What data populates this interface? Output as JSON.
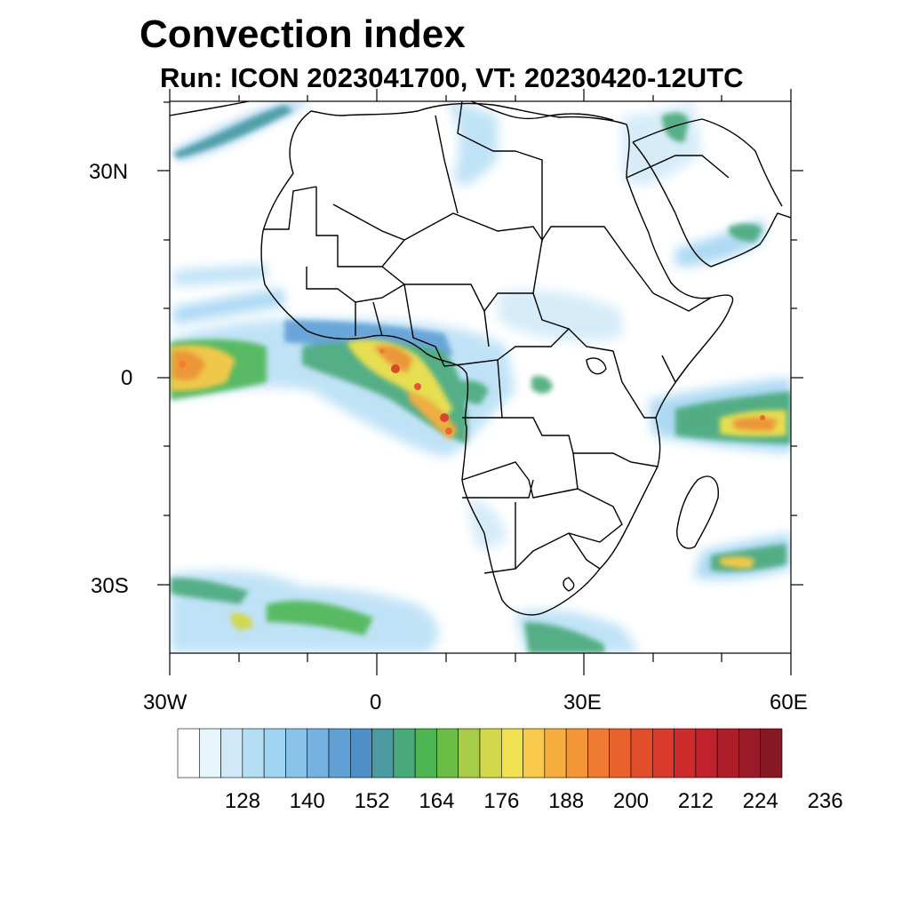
{
  "title": "Convection index",
  "subtitle": "Run: ICON 2023041700,  VT: 20230420-12UTC",
  "axes": {
    "lat_labels": [
      "30N",
      "0",
      "30S"
    ],
    "lon_labels": [
      "30W",
      "0",
      "30E",
      "60E"
    ]
  },
  "colorbar": {
    "labels": [
      "128",
      "140",
      "152",
      "164",
      "176",
      "188",
      "200",
      "212",
      "224",
      "236"
    ],
    "colors": [
      "#ffffff",
      "#e6f4fc",
      "#cfe9f8",
      "#b5def5",
      "#9fd3f2",
      "#89c3ea",
      "#75b1e1",
      "#619fd5",
      "#4f8fc8",
      "#4a9aa0",
      "#4aa97a",
      "#4db653",
      "#6bbd45",
      "#a6cc4a",
      "#d3d84a",
      "#efe14f",
      "#f8c94a",
      "#f8ad3f",
      "#f49538",
      "#ef7b32",
      "#e9622d",
      "#e24d2b",
      "#d83a2c",
      "#cd2b2c",
      "#bf222c",
      "#ad1e2a",
      "#991b27",
      "#861823"
    ]
  },
  "legend_semantic": {
    "colors": {
      "ocean": "#ffffff",
      "coast": "#000000",
      "low": "#cfe9f8",
      "mid": "#4db653",
      "high": "#f49538",
      "extreme": "#cd2b2c"
    }
  }
}
